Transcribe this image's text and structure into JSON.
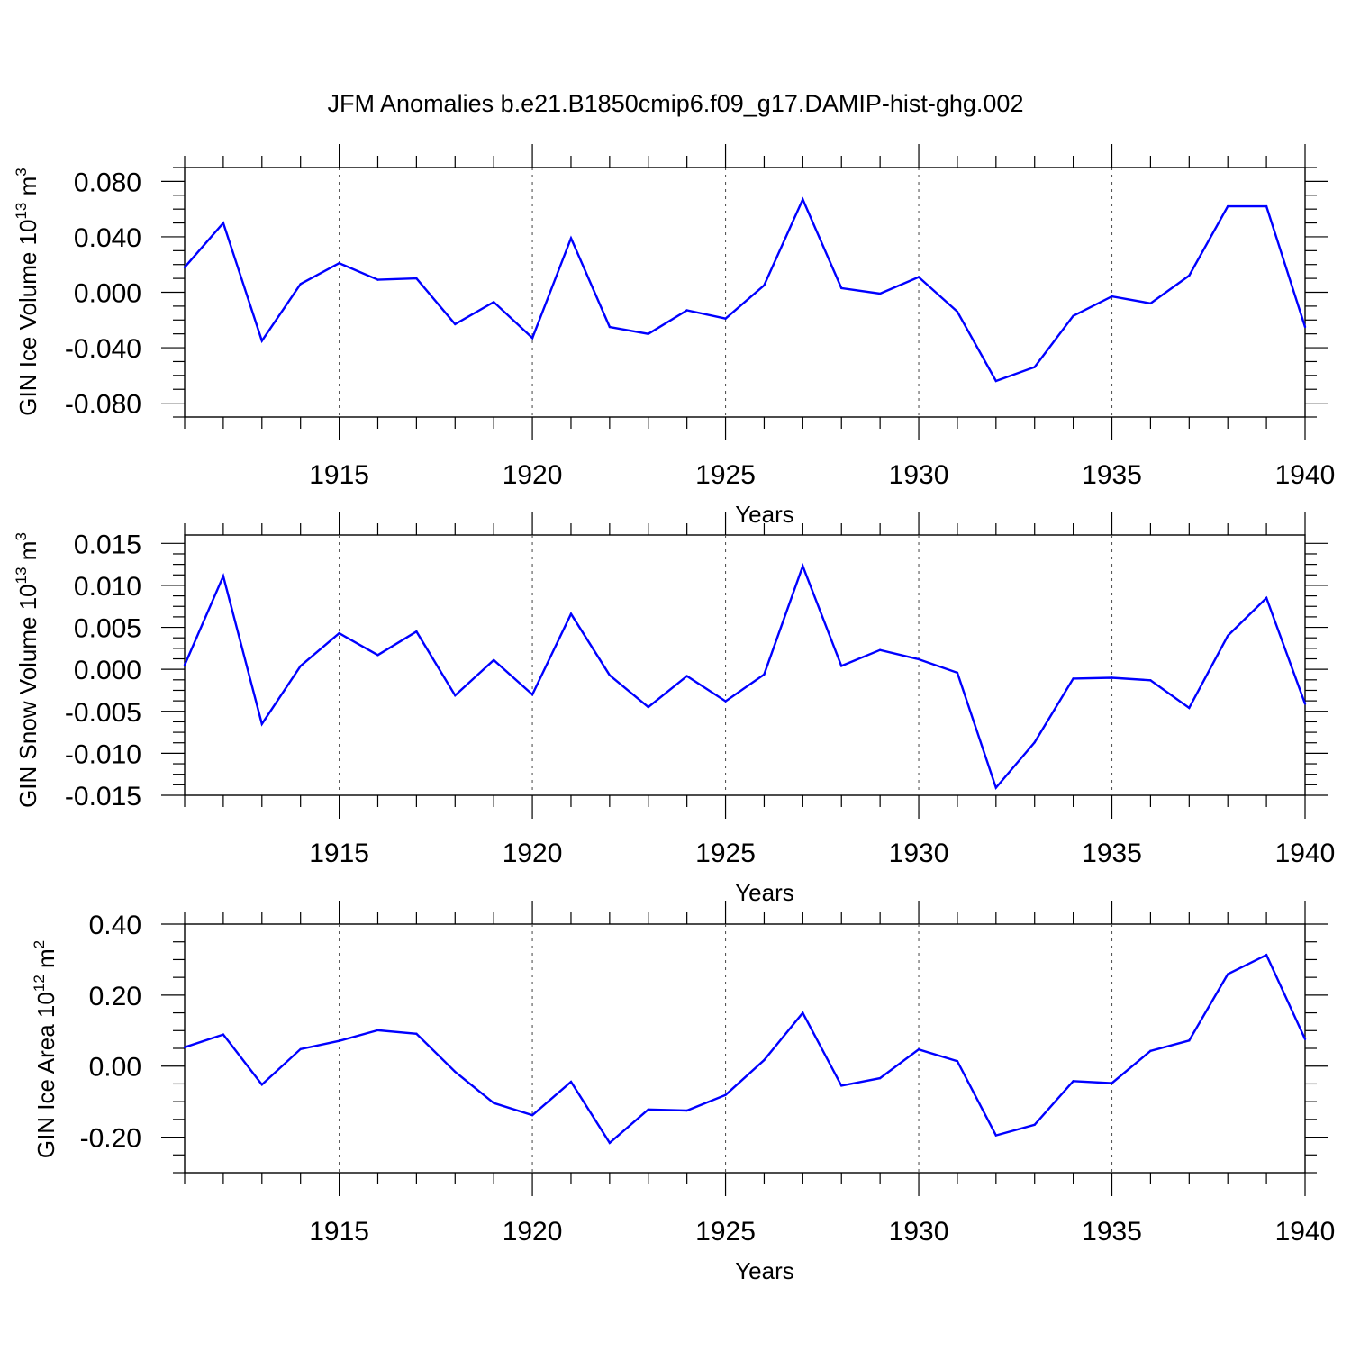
{
  "title": "JFM Anomalies b.e21.B1850cmip6.f09_g17.DAMIP-hist-ghg.002",
  "colors": {
    "series": "#0000ff",
    "axis": "#000000",
    "grid": "#555555"
  },
  "chart_data": [
    {
      "type": "line",
      "name": "ice-volume",
      "ylabel": "GIN Ice Volume",
      "yunit": {
        "base": "10",
        "exp": "13",
        "unit": "m",
        "unit_exp": "3"
      },
      "xlabel": "Years",
      "xlim": [
        1911,
        1940
      ],
      "ylim": [
        -0.09,
        0.09
      ],
      "yticks": [
        0.08,
        0.04,
        0.0,
        -0.04,
        -0.08
      ],
      "yticklabels": [
        "0.080",
        "0.040",
        "0.000",
        "-0.040",
        "-0.080"
      ],
      "xticks": [
        1915,
        1920,
        1925,
        1930,
        1935,
        1940
      ],
      "xticklabels": [
        "1915",
        "1920",
        "1925",
        "1930",
        "1935",
        "1940"
      ],
      "grid": "vertical dashed at major x ticks",
      "x": [
        1911,
        1912,
        1913,
        1914,
        1915,
        1916,
        1917,
        1918,
        1919,
        1920,
        1921,
        1922,
        1923,
        1924,
        1925,
        1926,
        1927,
        1928,
        1929,
        1930,
        1931,
        1932,
        1933,
        1934,
        1935,
        1936,
        1937,
        1938,
        1939,
        1940
      ],
      "values": [
        0.018,
        0.05,
        -0.035,
        0.006,
        0.021,
        0.009,
        0.01,
        -0.023,
        -0.007,
        -0.033,
        0.039,
        -0.025,
        -0.03,
        -0.013,
        -0.019,
        0.005,
        0.067,
        0.003,
        -0.001,
        0.011,
        -0.014,
        -0.064,
        -0.054,
        -0.017,
        -0.003,
        -0.008,
        0.012,
        0.062,
        0.062,
        -0.025
      ]
    },
    {
      "type": "line",
      "name": "snow-volume",
      "ylabel": "GIN Snow Volume",
      "yunit": {
        "base": "10",
        "exp": "13",
        "unit": "m",
        "unit_exp": "3"
      },
      "xlabel": "Years",
      "xlim": [
        1911,
        1940
      ],
      "ylim": [
        -0.015,
        0.016
      ],
      "yticks": [
        0.015,
        0.01,
        0.005,
        0.0,
        -0.005,
        -0.01,
        -0.015
      ],
      "yticklabels": [
        "0.015",
        "0.010",
        "0.005",
        "0.000",
        "-0.005",
        "-0.010",
        "-0.015"
      ],
      "xticks": [
        1915,
        1920,
        1925,
        1930,
        1935,
        1940
      ],
      "xticklabels": [
        "1915",
        "1920",
        "1925",
        "1930",
        "1935",
        "1940"
      ],
      "grid": "vertical dashed at major x ticks",
      "x": [
        1911,
        1912,
        1913,
        1914,
        1915,
        1916,
        1917,
        1918,
        1919,
        1920,
        1921,
        1922,
        1923,
        1924,
        1925,
        1926,
        1927,
        1928,
        1929,
        1930,
        1931,
        1932,
        1933,
        1934,
        1935,
        1936,
        1937,
        1938,
        1939,
        1940
      ],
      "values": [
        0.0005,
        0.0111,
        -0.0065,
        0.0004,
        0.0043,
        0.0017,
        0.0045,
        -0.0031,
        0.0011,
        -0.003,
        0.0066,
        -0.0007,
        -0.0045,
        -0.0008,
        -0.0038,
        -0.0006,
        0.0123,
        0.0004,
        0.0023,
        0.0012,
        -0.0004,
        -0.0141,
        -0.0087,
        -0.0011,
        -0.001,
        -0.0013,
        -0.0046,
        0.004,
        0.0085,
        -0.0041
      ]
    },
    {
      "type": "line",
      "name": "ice-area",
      "ylabel": "GIN Ice Area",
      "yunit": {
        "base": "10",
        "exp": "12",
        "unit": "m",
        "unit_exp": "2"
      },
      "xlabel": "Years",
      "xlim": [
        1911,
        1940
      ],
      "ylim": [
        -0.3,
        0.4
      ],
      "yticks": [
        0.4,
        0.2,
        0.0,
        -0.2
      ],
      "yticklabels": [
        "0.40",
        "0.20",
        "0.00",
        "-0.20"
      ],
      "xticks": [
        1915,
        1920,
        1925,
        1930,
        1935,
        1940
      ],
      "xticklabels": [
        "1915",
        "1920",
        "1925",
        "1930",
        "1935",
        "1940"
      ],
      "grid": "vertical dashed at major x ticks",
      "x": [
        1911,
        1912,
        1913,
        1914,
        1915,
        1916,
        1917,
        1918,
        1919,
        1920,
        1921,
        1922,
        1923,
        1924,
        1925,
        1926,
        1927,
        1928,
        1929,
        1930,
        1931,
        1932,
        1933,
        1934,
        1935,
        1936,
        1937,
        1938,
        1939,
        1940
      ],
      "values": [
        0.053,
        0.089,
        -0.052,
        0.048,
        0.071,
        0.101,
        0.091,
        -0.016,
        -0.104,
        -0.138,
        -0.044,
        -0.216,
        -0.122,
        -0.125,
        -0.081,
        0.017,
        0.15,
        -0.055,
        -0.034,
        0.047,
        0.014,
        -0.195,
        -0.165,
        -0.042,
        -0.048,
        0.043,
        0.072,
        0.259,
        0.313,
        0.076
      ]
    }
  ]
}
